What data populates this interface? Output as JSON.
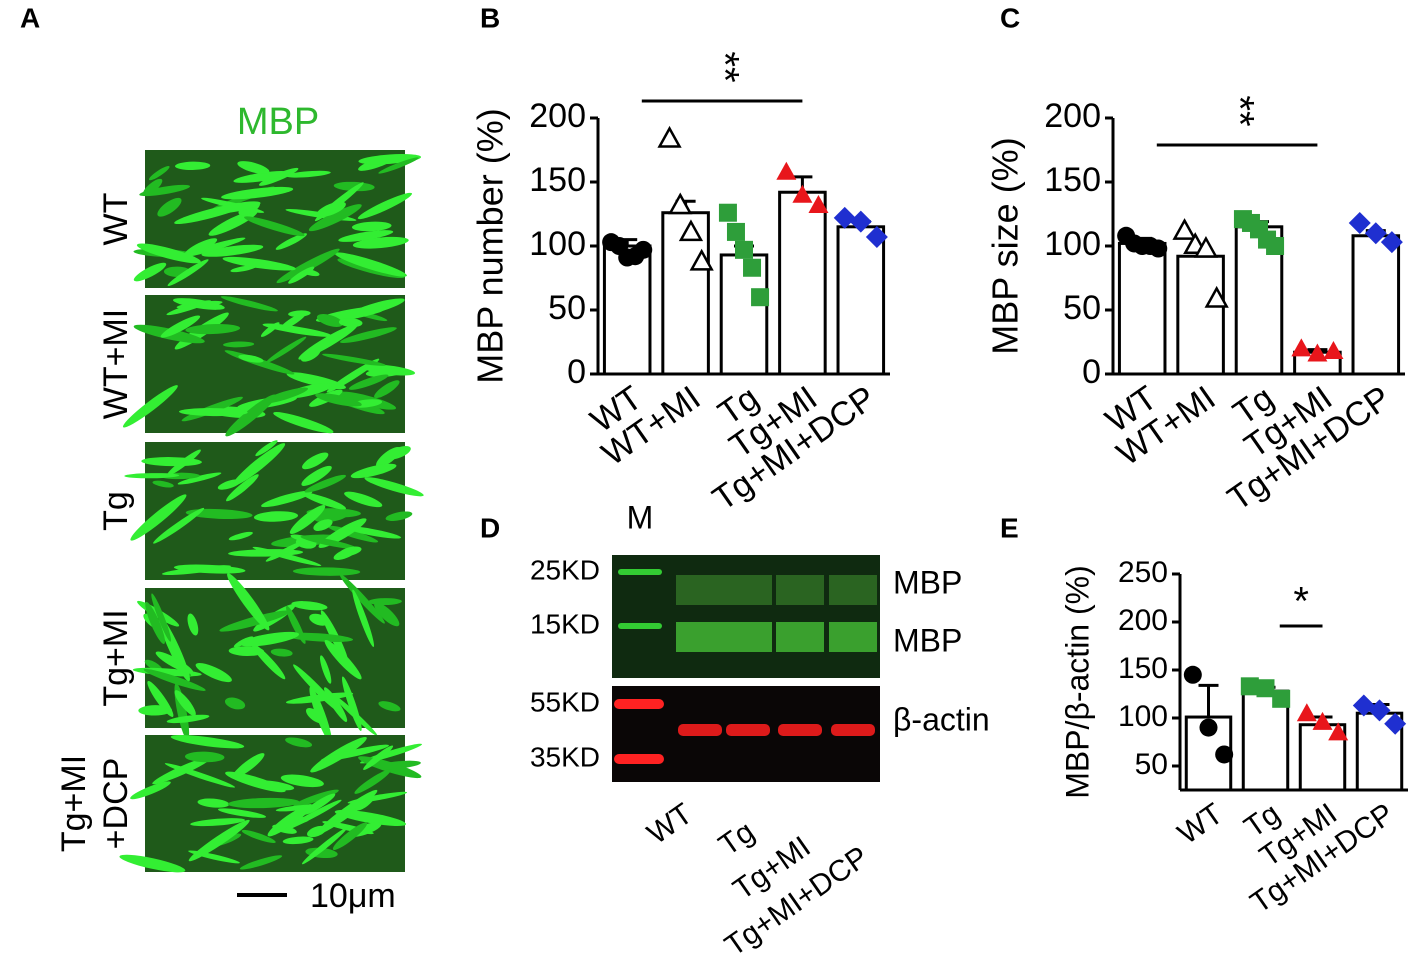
{
  "panel_labels": [
    "A",
    "B",
    "C",
    "D",
    "E"
  ],
  "panel_a": {
    "title": "MBP",
    "rows": [
      [
        "WT"
      ],
      [
        "WT+MI"
      ],
      [
        "Tg"
      ],
      [
        "Tg+MI"
      ],
      [
        "Tg+MI",
        "+DCP"
      ]
    ],
    "scale_bar": "10μm"
  },
  "panel_d": {
    "marker_lane": "M",
    "markers": [
      "25KD",
      "15KD",
      "55KD",
      "35KD"
    ],
    "bands": [
      "MBP",
      "MBP",
      "β-actin"
    ],
    "lanes": [
      "WT",
      "Tg",
      "Tg+MI",
      "Tg+MI+DCP"
    ]
  },
  "chart_data": [
    {
      "type": "bar",
      "ylabel": "MBP number (%)",
      "categories": [
        "WT",
        "WT+MI",
        "Tg",
        "Tg+MI",
        "Tg+MI+DCP"
      ],
      "values": [
        100,
        126,
        93,
        142,
        115
      ],
      "errors": [
        5,
        9,
        7,
        12,
        4
      ],
      "points": [
        [
          103,
          100,
          91,
          92,
          97
        ],
        [
          184,
          132,
          111,
          88
        ],
        [
          126,
          111,
          97,
          83,
          60
        ],
        [
          158,
          140,
          132
        ],
        [
          122,
          119,
          107
        ]
      ],
      "colors": [
        "#000000",
        "#ffffff",
        "#2e9e3a",
        "#e8161b",
        "#1f2fd0"
      ],
      "markers": [
        "circle",
        "triangle",
        "square",
        "triangle",
        "diamond"
      ],
      "ylim": [
        0,
        200
      ],
      "yticks": [
        0,
        50,
        100,
        150,
        200
      ],
      "significance": {
        "label": "**",
        "between": [
          "WT",
          "Tg+MI"
        ]
      }
    },
    {
      "type": "bar",
      "ylabel": "MBP size (%)",
      "categories": [
        "WT",
        "WT+MI",
        "Tg",
        "Tg+MI",
        "Tg+MI+DCP"
      ],
      "values": [
        102,
        92,
        115,
        17,
        108
      ],
      "errors": [
        4,
        7,
        4,
        2,
        4
      ],
      "points": [
        [
          108,
          102,
          100,
          100,
          98
        ],
        [
          112,
          101,
          98,
          59
        ],
        [
          121,
          118,
          113,
          105,
          100
        ],
        [
          20,
          16,
          18
        ],
        [
          118,
          110,
          103
        ]
      ],
      "colors": [
        "#000000",
        "#ffffff",
        "#2e9e3a",
        "#e8161b",
        "#1f2fd0"
      ],
      "markers": [
        "circle",
        "triangle",
        "square",
        "triangle",
        "diamond"
      ],
      "ylim": [
        0,
        200
      ],
      "yticks": [
        0,
        50,
        100,
        150,
        200
      ],
      "significance": {
        "label": "**",
        "between": [
          "WT",
          "Tg+MI"
        ]
      }
    },
    {
      "type": "bar",
      "ylabel": "MBP/β-actin (%)",
      "categories": [
        "WT",
        "Tg",
        "Tg+MI",
        "Tg+MI+DCP"
      ],
      "values": [
        101,
        128,
        93,
        105
      ],
      "errors": [
        33,
        4,
        8,
        9
      ],
      "points": [
        [
          145,
          90,
          62
        ],
        [
          133,
          131,
          120
        ],
        [
          105,
          96,
          85
        ],
        [
          113,
          108,
          94
        ]
      ],
      "colors": [
        "#000000",
        "#2e9e3a",
        "#e8161b",
        "#1f2fd0"
      ],
      "markers": [
        "circle",
        "square",
        "triangle",
        "diamond"
      ],
      "ylim": [
        25,
        250
      ],
      "yticks": [
        50,
        100,
        150,
        200,
        250
      ],
      "significance": {
        "label": "*",
        "between": [
          "Tg",
          "Tg+MI"
        ]
      }
    }
  ]
}
